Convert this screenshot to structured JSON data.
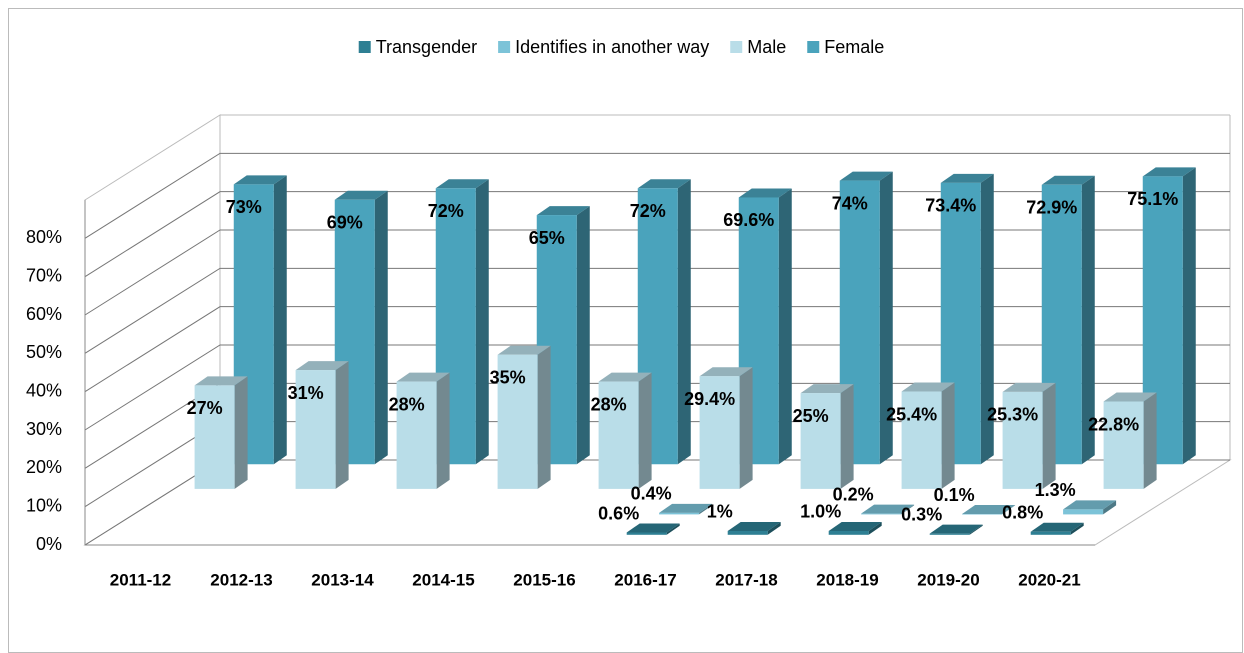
{
  "chart_data": {
    "type": "bar3d",
    "categories": [
      "2011-12",
      "2012-13",
      "2013-14",
      "2014-15",
      "2015-16",
      "2016-17",
      "2017-18",
      "2018-19",
      "2019-20",
      "2020-21"
    ],
    "series": [
      {
        "name": "Transgender",
        "color": "#2e7f93",
        "values": [
          null,
          null,
          null,
          null,
          null,
          0.6,
          1,
          1.0,
          0.3,
          0.8
        ],
        "value_labels": [
          null,
          null,
          null,
          null,
          null,
          "0.6%",
          "1%",
          "1.0%",
          "0.3%",
          "0.8%"
        ]
      },
      {
        "name": "Identifies in another way",
        "color": "#7cc3d8",
        "values": [
          null,
          null,
          null,
          null,
          null,
          0.4,
          null,
          0.2,
          0.1,
          1.3
        ],
        "value_labels": [
          null,
          null,
          null,
          null,
          null,
          "0.4%",
          null,
          "0.2%",
          "0.1%",
          "1.3%"
        ]
      },
      {
        "name": "Male",
        "color": "#b9dde8",
        "values": [
          27,
          31,
          28,
          35,
          28,
          29.4,
          25,
          25.4,
          25.3,
          22.8
        ],
        "value_labels": [
          "27%",
          "31%",
          "28%",
          "35%",
          "28%",
          "29.4%",
          "25%",
          "25.4%",
          "25.3%",
          "22.8%"
        ]
      },
      {
        "name": "Female",
        "color": "#4aa3bc",
        "values": [
          73,
          69,
          72,
          65,
          72,
          69.6,
          74,
          73.4,
          72.9,
          75.1
        ],
        "value_labels": [
          "73%",
          "69%",
          "72%",
          "65%",
          "72%",
          "69.6%",
          "74%",
          "73.4%",
          "72.9%",
          "75.1%"
        ]
      }
    ],
    "ylim": [
      0,
      90
    ],
    "yticks": [
      {
        "value": 0,
        "label": "0%"
      },
      {
        "value": 10,
        "label": "10%"
      },
      {
        "value": 20,
        "label": "20%"
      },
      {
        "value": 30,
        "label": "30%"
      },
      {
        "value": 40,
        "label": "40%"
      },
      {
        "value": 50,
        "label": "50%"
      },
      {
        "value": 60,
        "label": "60%"
      },
      {
        "value": 70,
        "label": "70%"
      },
      {
        "value": 80,
        "label": "80%"
      }
    ],
    "grid": true,
    "legend": "top"
  }
}
